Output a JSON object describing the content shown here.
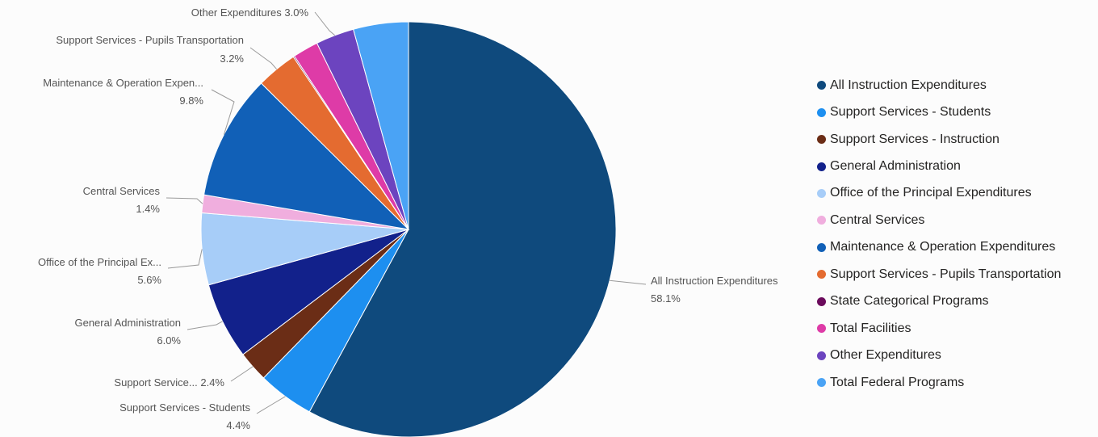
{
  "chart_data": {
    "type": "pie",
    "start_angle_deg": 0,
    "direction": "clockwise",
    "slices": [
      {
        "name": "All Instruction Expenditures",
        "value": 58.1,
        "color": "#0f4a7d",
        "callout": [
          "All Instruction Expenditures",
          "58.1%"
        ]
      },
      {
        "name": "Support Services - Students",
        "value": 4.4,
        "color": "#1d8ff0",
        "callout": [
          "Support Services - Students",
          "4.4%"
        ]
      },
      {
        "name": "Support Services - Instruction",
        "value": 2.4,
        "color": "#6b2d16",
        "callout": [
          "Support Service... 2.4%"
        ]
      },
      {
        "name": "General Administration",
        "value": 6.0,
        "color": "#12218b",
        "callout": [
          "General Administration",
          "6.0%"
        ]
      },
      {
        "name": "Office of the Principal Expenditures",
        "value": 5.6,
        "color": "#a7cdf8",
        "callout": [
          "Office of the Principal Ex...",
          "5.6%"
        ]
      },
      {
        "name": "Central Services",
        "value": 1.4,
        "color": "#f0aede",
        "callout": [
          "Central Services",
          "1.4%"
        ]
      },
      {
        "name": "Maintenance & Operation Expenditures",
        "value": 9.8,
        "color": "#1160b7",
        "callout": [
          "Maintenance & Operation Expen...",
          "9.8%"
        ]
      },
      {
        "name": "Support Services - Pupils Transportation",
        "value": 3.2,
        "color": "#e46b30",
        "callout": [
          "Support Services - Pupils Transportation",
          "3.2%"
        ]
      },
      {
        "name": "State Categorical Programs",
        "value": 0.1,
        "color": "#6b0b5c",
        "callout": []
      },
      {
        "name": "Total Facilities",
        "value": 2.0,
        "color": "#de3ba7",
        "callout": []
      },
      {
        "name": "Other Expenditures",
        "value": 3.0,
        "color": "#6c44bf",
        "callout": [
          "Other Expenditures 3.0%"
        ]
      },
      {
        "name": "Total Federal Programs",
        "value": 4.3,
        "color": "#4aa3f5",
        "callout": []
      }
    ],
    "legend_position": "right"
  }
}
